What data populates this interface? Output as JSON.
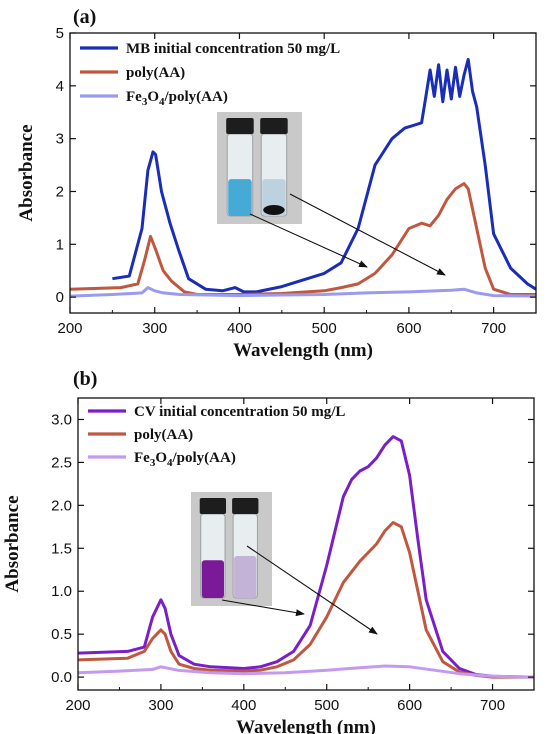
{
  "chart_data": [
    {
      "type": "line",
      "panel_label": "(a)",
      "xlabel": "Wavelength (nm)",
      "ylabel": "Absorbance",
      "xlim": [
        200,
        750
      ],
      "ylim": [
        -0.3,
        5
      ],
      "xticks": [
        200,
        300,
        400,
        500,
        600,
        700
      ],
      "yticks": [
        0,
        1,
        2,
        3,
        4,
        5
      ],
      "legend_position": "top-left",
      "inset": "photo of two vials: blue MB solution (left) and nearly clear solution (right)",
      "series": [
        {
          "name": "MB initial concentration 50 mg/L",
          "color": "#1a2db8",
          "x": [
            250,
            270,
            285,
            292,
            298,
            301,
            308,
            318,
            328,
            340,
            360,
            380,
            395,
            405,
            420,
            450,
            480,
            500,
            520,
            540,
            560,
            580,
            595,
            605,
            615,
            620,
            625,
            630,
            635,
            640,
            645,
            650,
            655,
            660,
            665,
            670,
            675,
            680,
            690,
            700,
            720,
            740,
            750
          ],
          "y": [
            0.35,
            0.4,
            1.3,
            2.4,
            2.75,
            2.7,
            2.0,
            1.4,
            0.9,
            0.35,
            0.15,
            0.12,
            0.18,
            0.1,
            0.1,
            0.2,
            0.35,
            0.45,
            0.65,
            1.3,
            2.5,
            3.0,
            3.2,
            3.25,
            3.3,
            3.8,
            4.3,
            3.8,
            4.4,
            3.7,
            4.3,
            3.75,
            4.35,
            3.8,
            4.2,
            4.5,
            3.9,
            3.6,
            2.5,
            1.2,
            0.55,
            0.25,
            0.15
          ]
        },
        {
          "name": "poly(AA)",
          "color": "#c0573f",
          "x": [
            200,
            260,
            280,
            288,
            295,
            300,
            310,
            320,
            335,
            350,
            400,
            450,
            500,
            520,
            540,
            560,
            580,
            600,
            615,
            625,
            635,
            645,
            655,
            665,
            670,
            680,
            690,
            700,
            720,
            750
          ],
          "y": [
            0.15,
            0.18,
            0.25,
            0.7,
            1.15,
            0.95,
            0.5,
            0.3,
            0.1,
            0.05,
            0.05,
            0.07,
            0.12,
            0.18,
            0.25,
            0.45,
            0.8,
            1.3,
            1.4,
            1.35,
            1.55,
            1.85,
            2.05,
            2.15,
            2.05,
            1.3,
            0.55,
            0.15,
            0.05,
            0.05
          ]
        },
        {
          "name": "Fe3O4/poly(AA)",
          "color": "#9a9af0",
          "x": [
            200,
            250,
            285,
            292,
            300,
            310,
            330,
            360,
            400,
            450,
            500,
            550,
            600,
            650,
            665,
            680,
            700,
            750
          ],
          "y": [
            0.02,
            0.05,
            0.08,
            0.18,
            0.12,
            0.08,
            0.05,
            0.04,
            0.03,
            0.04,
            0.05,
            0.08,
            0.1,
            0.13,
            0.15,
            0.08,
            0.03,
            0.02
          ]
        }
      ]
    },
    {
      "type": "line",
      "panel_label": "(b)",
      "xlabel": "Wavelength (nm)",
      "ylabel": "Absorbance",
      "xlim": [
        200,
        750
      ],
      "ylim": [
        -0.15,
        3.25
      ],
      "xticks": [
        200,
        300,
        400,
        500,
        600,
        700
      ],
      "yticks": [
        0.0,
        0.5,
        1.0,
        1.5,
        2.0,
        2.5,
        3.0
      ],
      "legend_position": "top-left",
      "inset": "photo of two vials: purple CV solution (left) and pale lilac solution (right)",
      "series": [
        {
          "name": "CV initial concentration 50 mg/L",
          "color": "#7a1fc8",
          "x": [
            200,
            260,
            280,
            290,
            300,
            305,
            312,
            322,
            340,
            360,
            400,
            420,
            440,
            460,
            480,
            500,
            520,
            530,
            540,
            550,
            560,
            570,
            580,
            590,
            600,
            610,
            620,
            640,
            660,
            680,
            700,
            750
          ],
          "y": [
            0.28,
            0.3,
            0.35,
            0.7,
            0.9,
            0.8,
            0.5,
            0.25,
            0.15,
            0.12,
            0.1,
            0.12,
            0.18,
            0.3,
            0.6,
            1.3,
            2.1,
            2.3,
            2.4,
            2.45,
            2.55,
            2.7,
            2.8,
            2.75,
            2.35,
            1.6,
            0.9,
            0.3,
            0.1,
            0.03,
            0.01,
            0.0
          ]
        },
        {
          "name": "poly(AA)",
          "color": "#c0573f",
          "x": [
            200,
            260,
            280,
            290,
            300,
            305,
            312,
            322,
            340,
            360,
            400,
            420,
            440,
            460,
            480,
            500,
            520,
            540,
            560,
            570,
            580,
            590,
            600,
            610,
            620,
            640,
            660,
            680,
            700,
            750
          ],
          "y": [
            0.2,
            0.22,
            0.3,
            0.45,
            0.55,
            0.5,
            0.3,
            0.15,
            0.1,
            0.08,
            0.07,
            0.08,
            0.12,
            0.2,
            0.38,
            0.7,
            1.1,
            1.35,
            1.55,
            1.7,
            1.8,
            1.75,
            1.45,
            1.0,
            0.55,
            0.18,
            0.06,
            0.02,
            0.0,
            0.0
          ]
        },
        {
          "name": "Fe3O4/poly(AA)",
          "color": "#c39af0",
          "x": [
            200,
            250,
            290,
            300,
            320,
            360,
            400,
            450,
            500,
            540,
            570,
            600,
            630,
            660,
            700,
            750
          ],
          "y": [
            0.05,
            0.07,
            0.09,
            0.12,
            0.08,
            0.05,
            0.04,
            0.05,
            0.08,
            0.11,
            0.13,
            0.12,
            0.08,
            0.04,
            0.01,
            0.0
          ]
        }
      ]
    }
  ]
}
